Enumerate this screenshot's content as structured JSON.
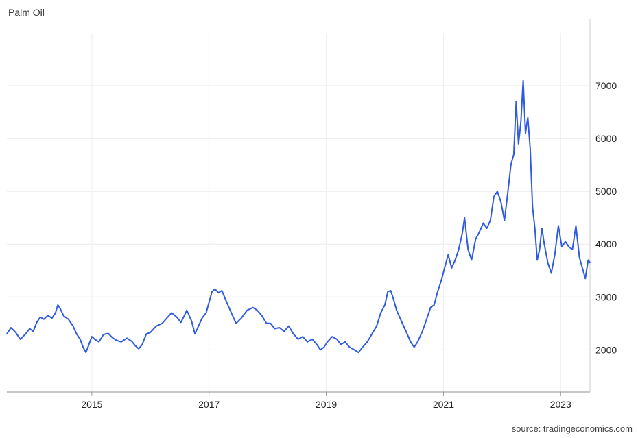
{
  "chart_data": {
    "type": "line",
    "title": "Palm Oil",
    "source": "source: tradingeconomics.com",
    "xlabel": "",
    "ylabel": "",
    "x_range": [
      2013.55,
      2023.5
    ],
    "ylim": [
      1200,
      8000
    ],
    "x_ticks": [
      {
        "value": 2015,
        "label": "2015"
      },
      {
        "value": 2017,
        "label": "2017"
      },
      {
        "value": 2019,
        "label": "2019"
      },
      {
        "value": 2021,
        "label": "2021"
      },
      {
        "value": 2023,
        "label": "2023"
      }
    ],
    "y_ticks": [
      {
        "value": 2000,
        "label": "2000"
      },
      {
        "value": 3000,
        "label": "3000"
      },
      {
        "value": 4000,
        "label": "4000"
      },
      {
        "value": 5000,
        "label": "5000"
      },
      {
        "value": 6000,
        "label": "6000"
      },
      {
        "value": 7000,
        "label": "7000"
      }
    ],
    "y_axis_position": "right",
    "grid": true,
    "line_color": "#2f5be0",
    "series": [
      {
        "values": [
          [
            2013.55,
            2300
          ],
          [
            2013.62,
            2420
          ],
          [
            2013.7,
            2330
          ],
          [
            2013.78,
            2200
          ],
          [
            2013.86,
            2290
          ],
          [
            2013.94,
            2400
          ],
          [
            2014.0,
            2350
          ],
          [
            2014.06,
            2520
          ],
          [
            2014.12,
            2620
          ],
          [
            2014.18,
            2580
          ],
          [
            2014.25,
            2650
          ],
          [
            2014.32,
            2600
          ],
          [
            2014.38,
            2700
          ],
          [
            2014.42,
            2850
          ],
          [
            2014.46,
            2780
          ],
          [
            2014.52,
            2640
          ],
          [
            2014.6,
            2580
          ],
          [
            2014.68,
            2450
          ],
          [
            2014.74,
            2300
          ],
          [
            2014.8,
            2200
          ],
          [
            2014.85,
            2050
          ],
          [
            2014.9,
            1950
          ],
          [
            2014.95,
            2100
          ],
          [
            2015.0,
            2250
          ],
          [
            2015.05,
            2200
          ],
          [
            2015.12,
            2150
          ],
          [
            2015.2,
            2290
          ],
          [
            2015.28,
            2310
          ],
          [
            2015.35,
            2230
          ],
          [
            2015.42,
            2180
          ],
          [
            2015.5,
            2150
          ],
          [
            2015.6,
            2220
          ],
          [
            2015.68,
            2160
          ],
          [
            2015.74,
            2080
          ],
          [
            2015.8,
            2020
          ],
          [
            2015.86,
            2100
          ],
          [
            2015.93,
            2300
          ],
          [
            2016.0,
            2330
          ],
          [
            2016.1,
            2450
          ],
          [
            2016.2,
            2500
          ],
          [
            2016.28,
            2600
          ],
          [
            2016.36,
            2700
          ],
          [
            2016.45,
            2620
          ],
          [
            2016.52,
            2520
          ],
          [
            2016.58,
            2650
          ],
          [
            2016.62,
            2750
          ],
          [
            2016.7,
            2550
          ],
          [
            2016.76,
            2300
          ],
          [
            2016.82,
            2450
          ],
          [
            2016.88,
            2600
          ],
          [
            2016.95,
            2700
          ],
          [
            2017.0,
            2900
          ],
          [
            2017.05,
            3100
          ],
          [
            2017.1,
            3150
          ],
          [
            2017.16,
            3080
          ],
          [
            2017.22,
            3120
          ],
          [
            2017.3,
            2900
          ],
          [
            2017.38,
            2700
          ],
          [
            2017.46,
            2500
          ],
          [
            2017.55,
            2600
          ],
          [
            2017.65,
            2750
          ],
          [
            2017.75,
            2800
          ],
          [
            2017.82,
            2750
          ],
          [
            2017.9,
            2650
          ],
          [
            2017.98,
            2500
          ],
          [
            2018.05,
            2500
          ],
          [
            2018.12,
            2400
          ],
          [
            2018.2,
            2420
          ],
          [
            2018.28,
            2350
          ],
          [
            2018.36,
            2450
          ],
          [
            2018.44,
            2300
          ],
          [
            2018.52,
            2200
          ],
          [
            2018.6,
            2250
          ],
          [
            2018.68,
            2150
          ],
          [
            2018.76,
            2200
          ],
          [
            2018.84,
            2100
          ],
          [
            2018.9,
            2000
          ],
          [
            2018.96,
            2050
          ],
          [
            2019.02,
            2150
          ],
          [
            2019.1,
            2250
          ],
          [
            2019.18,
            2200
          ],
          [
            2019.25,
            2100
          ],
          [
            2019.32,
            2150
          ],
          [
            2019.4,
            2050
          ],
          [
            2019.48,
            2000
          ],
          [
            2019.55,
            1950
          ],
          [
            2019.62,
            2050
          ],
          [
            2019.7,
            2150
          ],
          [
            2019.78,
            2300
          ],
          [
            2019.86,
            2450
          ],
          [
            2019.93,
            2700
          ],
          [
            2020.0,
            2850
          ],
          [
            2020.05,
            3100
          ],
          [
            2020.1,
            3120
          ],
          [
            2020.15,
            2950
          ],
          [
            2020.2,
            2750
          ],
          [
            2020.26,
            2600
          ],
          [
            2020.32,
            2450
          ],
          [
            2020.38,
            2300
          ],
          [
            2020.44,
            2150
          ],
          [
            2020.5,
            2050
          ],
          [
            2020.56,
            2150
          ],
          [
            2020.64,
            2350
          ],
          [
            2020.72,
            2600
          ],
          [
            2020.78,
            2800
          ],
          [
            2020.84,
            2850
          ],
          [
            2020.9,
            3100
          ],
          [
            2020.96,
            3300
          ],
          [
            2021.02,
            3550
          ],
          [
            2021.08,
            3800
          ],
          [
            2021.14,
            3550
          ],
          [
            2021.2,
            3700
          ],
          [
            2021.26,
            3900
          ],
          [
            2021.32,
            4200
          ],
          [
            2021.36,
            4500
          ],
          [
            2021.42,
            3900
          ],
          [
            2021.48,
            3700
          ],
          [
            2021.55,
            4100
          ],
          [
            2021.6,
            4200
          ],
          [
            2021.68,
            4400
          ],
          [
            2021.74,
            4300
          ],
          [
            2021.8,
            4450
          ],
          [
            2021.86,
            4900
          ],
          [
            2021.92,
            5000
          ],
          [
            2021.98,
            4800
          ],
          [
            2022.04,
            4450
          ],
          [
            2022.1,
            5000
          ],
          [
            2022.15,
            5500
          ],
          [
            2022.2,
            5700
          ],
          [
            2022.24,
            6700
          ],
          [
            2022.28,
            5900
          ],
          [
            2022.32,
            6300
          ],
          [
            2022.36,
            7100
          ],
          [
            2022.4,
            6100
          ],
          [
            2022.44,
            6400
          ],
          [
            2022.48,
            5800
          ],
          [
            2022.52,
            4700
          ],
          [
            2022.56,
            4300
          ],
          [
            2022.6,
            3700
          ],
          [
            2022.64,
            3900
          ],
          [
            2022.68,
            4300
          ],
          [
            2022.72,
            4000
          ],
          [
            2022.78,
            3650
          ],
          [
            2022.84,
            3450
          ],
          [
            2022.9,
            3800
          ],
          [
            2022.96,
            4350
          ],
          [
            2023.02,
            3950
          ],
          [
            2023.08,
            4050
          ],
          [
            2023.14,
            3950
          ],
          [
            2023.2,
            3900
          ],
          [
            2023.26,
            4350
          ],
          [
            2023.32,
            3750
          ],
          [
            2023.37,
            3550
          ],
          [
            2023.42,
            3350
          ],
          [
            2023.47,
            3700
          ],
          [
            2023.5,
            3650
          ]
        ]
      }
    ]
  }
}
